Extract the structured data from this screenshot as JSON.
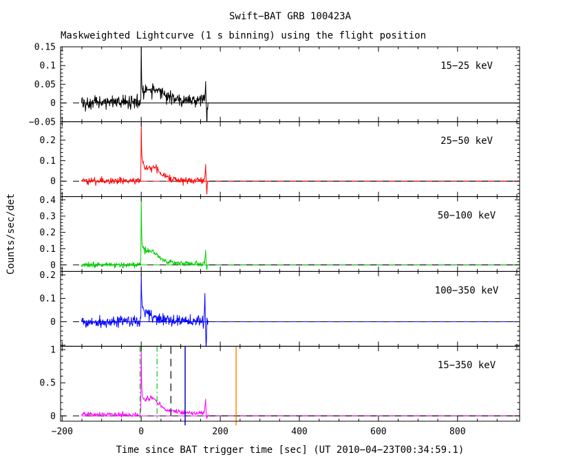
{
  "title": "Swift−BAT GRB 100423A",
  "subtitle": "Maskweighted Lightcurve (1 s binning) using the flight position",
  "xlabel": "Time since BAT trigger time [sec] (UT 2010−04−23T00:34:59.1)",
  "ylabel": "Counts/sec/det",
  "chart_data": {
    "type": "line",
    "title": "Swift−BAT GRB 100423A",
    "subtitle": "Maskweighted Lightcurve (1 s binning) using the flight position",
    "xlabel": "Time since BAT trigger time [sec] (UT 2010−04−23T00:34:59.1)",
    "ylabel": "Counts/sec/det",
    "grid": false,
    "x": {
      "lim": [
        -204,
        957
      ],
      "major_ticks": [
        [
          -200,
          "−200"
        ],
        [
          0,
          "0"
        ],
        [
          200,
          "200"
        ],
        [
          400,
          "400"
        ],
        [
          600,
          "600"
        ],
        [
          800,
          "800"
        ]
      ],
      "minor_step": 50,
      "data_start": -151,
      "data_end": 169
    },
    "panels": [
      {
        "label": "15−25 keV",
        "color": "#000000",
        "ylim": [
          -0.05,
          0.15
        ],
        "major_step": 0.05,
        "minor_step": 0.01,
        "yticks": [
          [
            -0.05,
            "−0.05"
          ],
          [
            0,
            "0"
          ],
          [
            0.05,
            "0.05"
          ],
          [
            0.1,
            "0.1"
          ],
          [
            0.15,
            "0.15"
          ]
        ],
        "noise_sigma": 0.009,
        "envelope": [
          [
            -204,
            0
          ],
          [
            -152,
            0
          ],
          [
            -2,
            0.002
          ],
          [
            -1,
            0.01
          ],
          [
            0,
            0.148
          ],
          [
            1,
            0.062
          ],
          [
            2,
            0.046
          ],
          [
            4,
            0.038
          ],
          [
            8,
            0.032
          ],
          [
            14,
            0.035
          ],
          [
            20,
            0.033
          ],
          [
            26,
            0.03
          ],
          [
            30,
            0.042
          ],
          [
            34,
            0.035
          ],
          [
            38,
            0.042
          ],
          [
            44,
            0.033
          ],
          [
            50,
            0.03
          ],
          [
            56,
            0.026
          ],
          [
            64,
            0.021
          ],
          [
            72,
            0.018
          ],
          [
            82,
            0.014
          ],
          [
            92,
            0.012
          ],
          [
            104,
            0.01
          ],
          [
            118,
            0.008
          ],
          [
            132,
            0.006
          ],
          [
            150,
            0.005
          ],
          [
            158,
            0.006
          ],
          [
            161,
            0.012
          ],
          [
            163,
            0.058
          ],
          [
            164,
            0.015
          ],
          [
            165,
            -0.025
          ],
          [
            166,
            -0.05
          ],
          [
            167,
            -0.01
          ],
          [
            169,
            0
          ]
        ]
      },
      {
        "label": "25−50 keV",
        "color": "#ff0000",
        "ylim": [
          -0.075,
          0.29
        ],
        "major_step": 0.1,
        "minor_step": 0.02,
        "yticks": [
          [
            0,
            "0"
          ],
          [
            0.1,
            "0.1"
          ],
          [
            0.2,
            "0.2"
          ]
        ],
        "noise_sigma": 0.008,
        "envelope": [
          [
            -204,
            0
          ],
          [
            -152,
            0
          ],
          [
            -2,
            0.002
          ],
          [
            -1,
            0.015
          ],
          [
            0,
            0.29
          ],
          [
            1,
            0.145
          ],
          [
            2,
            0.108
          ],
          [
            3,
            0.092
          ],
          [
            5,
            0.083
          ],
          [
            8,
            0.072
          ],
          [
            12,
            0.063
          ],
          [
            16,
            0.07
          ],
          [
            20,
            0.065
          ],
          [
            25,
            0.06
          ],
          [
            30,
            0.066
          ],
          [
            34,
            0.071
          ],
          [
            38,
            0.062
          ],
          [
            44,
            0.048
          ],
          [
            50,
            0.036
          ],
          [
            56,
            0.028
          ],
          [
            62,
            0.022
          ],
          [
            70,
            0.015
          ],
          [
            80,
            0.01
          ],
          [
            90,
            0.007
          ],
          [
            102,
            0.005
          ],
          [
            120,
            0.004
          ],
          [
            140,
            0.003
          ],
          [
            154,
            0.004
          ],
          [
            160,
            0.012
          ],
          [
            162,
            0.045
          ],
          [
            163,
            0.078
          ],
          [
            164,
            0.015
          ],
          [
            165,
            -0.035
          ],
          [
            166,
            -0.062
          ],
          [
            167,
            -0.015
          ],
          [
            169,
            0
          ]
        ]
      },
      {
        "label": "50−100 keV",
        "color": "#00cc00",
        "ylim": [
          -0.04,
          0.42
        ],
        "major_step": 0.1,
        "minor_step": 0.02,
        "yticks": [
          [
            0,
            "0"
          ],
          [
            0.1,
            "0.1"
          ],
          [
            0.2,
            "0.2"
          ],
          [
            0.3,
            "0.3"
          ],
          [
            0.4,
            "0.4"
          ]
        ],
        "noise_sigma": 0.008,
        "envelope": [
          [
            -204,
            0
          ],
          [
            -152,
            0
          ],
          [
            -2,
            0.003
          ],
          [
            -1,
            0.025
          ],
          [
            0,
            0.42
          ],
          [
            1,
            0.215
          ],
          [
            2,
            0.145
          ],
          [
            3,
            0.118
          ],
          [
            5,
            0.102
          ],
          [
            8,
            0.09
          ],
          [
            12,
            0.082
          ],
          [
            16,
            0.086
          ],
          [
            20,
            0.081
          ],
          [
            25,
            0.089
          ],
          [
            30,
            0.083
          ],
          [
            34,
            0.072
          ],
          [
            40,
            0.056
          ],
          [
            46,
            0.043
          ],
          [
            52,
            0.035
          ],
          [
            58,
            0.028
          ],
          [
            66,
            0.022
          ],
          [
            74,
            0.017
          ],
          [
            84,
            0.013
          ],
          [
            94,
            0.01
          ],
          [
            106,
            0.008
          ],
          [
            124,
            0.006
          ],
          [
            142,
            0.005
          ],
          [
            154,
            0.006
          ],
          [
            160,
            0.014
          ],
          [
            162,
            0.055
          ],
          [
            163,
            0.092
          ],
          [
            164,
            0.028
          ],
          [
            165,
            -0.012
          ],
          [
            166,
            -0.026
          ],
          [
            167,
            -0.005
          ],
          [
            169,
            0
          ]
        ]
      },
      {
        "label": "100−350 keV",
        "color": "#0000ff",
        "ylim": [
          -0.105,
          0.215
        ],
        "major_step": 0.1,
        "minor_step": 0.02,
        "yticks": [
          [
            0,
            "0"
          ],
          [
            0.1,
            "0.1"
          ],
          [
            0.2,
            "0.2"
          ]
        ],
        "noise_sigma": 0.013,
        "envelope": [
          [
            -204,
            0
          ],
          [
            -152,
            0
          ],
          [
            -2,
            0.003
          ],
          [
            -1,
            0.012
          ],
          [
            0,
            0.215
          ],
          [
            1,
            0.125
          ],
          [
            2,
            0.092
          ],
          [
            3,
            0.076
          ],
          [
            5,
            0.062
          ],
          [
            8,
            0.05
          ],
          [
            12,
            0.042
          ],
          [
            16,
            0.036
          ],
          [
            20,
            0.031
          ],
          [
            25,
            0.025
          ],
          [
            30,
            0.021
          ],
          [
            36,
            0.016
          ],
          [
            42,
            0.013
          ],
          [
            50,
            0.01
          ],
          [
            60,
            0.008
          ],
          [
            76,
            0.006
          ],
          [
            96,
            0.005
          ],
          [
            120,
            0.004
          ],
          [
            146,
            0.004
          ],
          [
            156,
            0.005
          ],
          [
            159,
            0.02
          ],
          [
            160,
            0.06
          ],
          [
            161,
            0.122
          ],
          [
            162,
            0.02
          ],
          [
            163,
            -0.06
          ],
          [
            164,
            -0.115
          ],
          [
            165,
            -0.05
          ],
          [
            166,
            0.01
          ],
          [
            167,
            0
          ],
          [
            169,
            0
          ]
        ]
      },
      {
        "label": "15−350 keV",
        "color": "#ff00ff",
        "ylim": [
          -0.08,
          1.05
        ],
        "major_step": 0.5,
        "minor_step": 0.1,
        "yticks": [
          [
            0,
            "0"
          ],
          [
            0.5,
            "0.5"
          ],
          [
            1,
            "1"
          ]
        ],
        "noise_sigma": 0.016,
        "envelope": [
          [
            -204,
            0
          ],
          [
            -152,
            0.02
          ],
          [
            -2,
            0.02
          ],
          [
            -1,
            0.08
          ],
          [
            0,
            1.05
          ],
          [
            1,
            0.52
          ],
          [
            2,
            0.37
          ],
          [
            3,
            0.31
          ],
          [
            5,
            0.27
          ],
          [
            8,
            0.245
          ],
          [
            11,
            0.225
          ],
          [
            14,
            0.255
          ],
          [
            17,
            0.27
          ],
          [
            20,
            0.245
          ],
          [
            23,
            0.27
          ],
          [
            26,
            0.29
          ],
          [
            29,
            0.262
          ],
          [
            32,
            0.275
          ],
          [
            35,
            0.24
          ],
          [
            39,
            0.205
          ],
          [
            43,
            0.175
          ],
          [
            47,
            0.19
          ],
          [
            51,
            0.15
          ],
          [
            56,
            0.125
          ],
          [
            61,
            0.105
          ],
          [
            67,
            0.09
          ],
          [
            74,
            0.08
          ],
          [
            82,
            0.072
          ],
          [
            92,
            0.062
          ],
          [
            102,
            0.056
          ],
          [
            114,
            0.05
          ],
          [
            128,
            0.045
          ],
          [
            142,
            0.042
          ],
          [
            154,
            0.045
          ],
          [
            158,
            0.055
          ],
          [
            160,
            0.09
          ],
          [
            162,
            0.16
          ],
          [
            163,
            0.26
          ],
          [
            164,
            0.1
          ],
          [
            165,
            -0.02
          ],
          [
            166,
            -0.06
          ],
          [
            167,
            0.005
          ],
          [
            169,
            0.02
          ]
        ]
      }
    ],
    "markers": [
      {
        "t": -3,
        "color": "#00cc00",
        "style": "dashdot"
      },
      {
        "t": 40,
        "color": "#00cc00",
        "style": "dashdot"
      },
      {
        "t": 75,
        "color": "#000000",
        "style": "dash"
      },
      {
        "t": 111,
        "color": "#0000bb",
        "style": "solid"
      },
      {
        "t": 240,
        "color": "#ff8800",
        "style": "solid"
      }
    ]
  }
}
